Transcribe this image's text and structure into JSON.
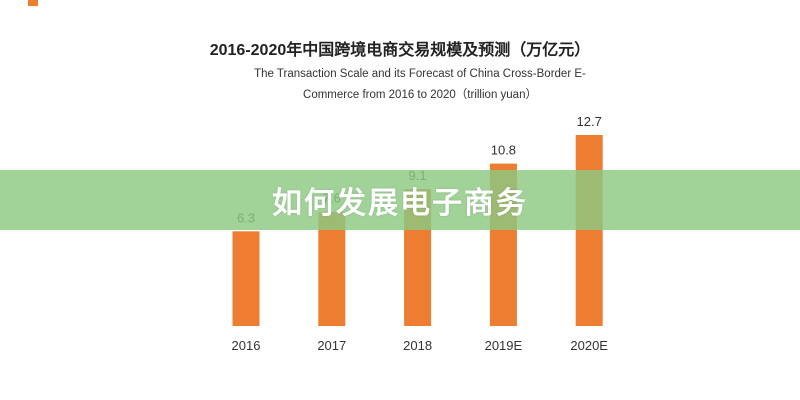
{
  "banner": {
    "text": "如何发展电子商务"
  },
  "colors": {
    "bar": "#ed7d31",
    "banner": "#8cc982",
    "label": "#333333"
  },
  "chart_data": {
    "type": "bar",
    "title": "2016-2020年中国跨境电商交易规模及预测（万亿元）",
    "subtitle_line1": "The Transaction Scale and its Forecast of China Cross-Border E-",
    "subtitle_line2": "Commerce from 2016 to 2020（trillion yuan）",
    "categories": [
      "2016",
      "2017",
      "2018",
      "2019E",
      "2020E"
    ],
    "values": [
      6.3,
      7.6,
      9.1,
      10.8,
      12.7
    ],
    "value_labels": [
      "6.3",
      "7.6",
      "9.1",
      "10.8",
      "12.7"
    ],
    "xlabel": "",
    "ylabel": "",
    "ylim": [
      0,
      12.7
    ],
    "grid": false,
    "legend": "none"
  }
}
